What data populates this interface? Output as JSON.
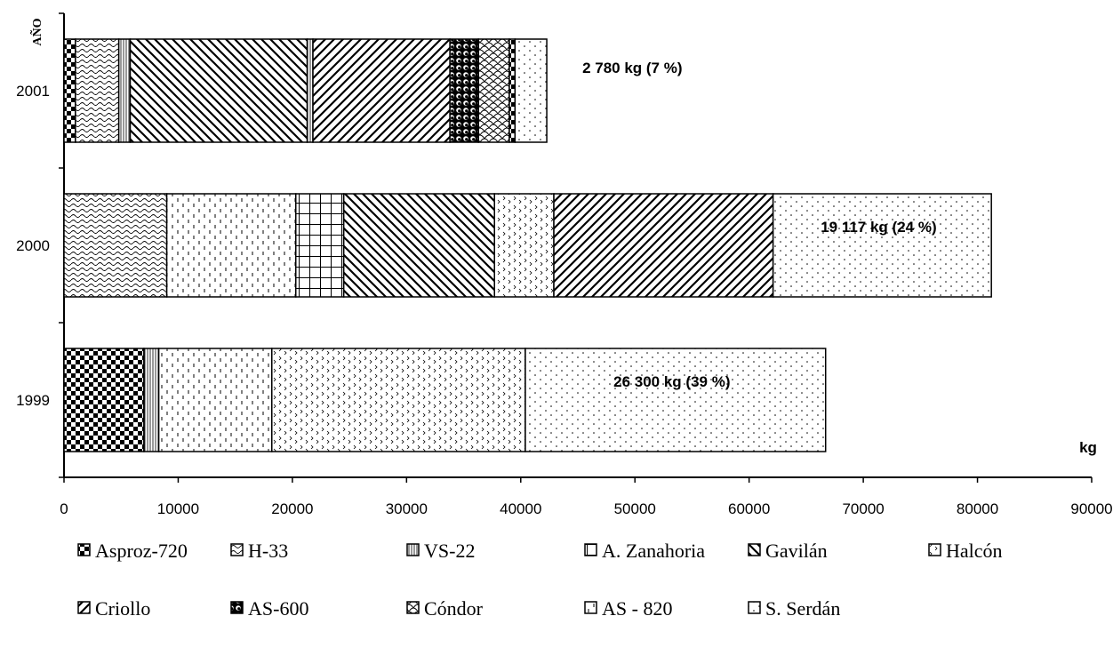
{
  "chart_data": {
    "type": "bar",
    "orientation": "horizontal",
    "stacked": true,
    "ylabel": "AÑO",
    "xlabel": "kg",
    "xlim": [
      0,
      90000
    ],
    "xticks": [
      0,
      10000,
      20000,
      30000,
      40000,
      50000,
      60000,
      70000,
      80000,
      90000
    ],
    "categories": [
      "2001",
      "2000",
      "1999"
    ],
    "bars": [
      {
        "year": "2001",
        "annotation": "2 780 kg (7 %)",
        "segments": [
          {
            "pattern": "checker",
            "value": 1000
          },
          {
            "pattern": "wave",
            "value": 3800
          },
          {
            "pattern": "vlines",
            "value": 1000
          },
          {
            "pattern": "diag-back",
            "value": 15500
          },
          {
            "pattern": "vlines",
            "value": 500
          },
          {
            "pattern": "diag-fwd",
            "value": 12000
          },
          {
            "pattern": "circles",
            "value": 2500
          },
          {
            "pattern": "scales",
            "value": 2700
          },
          {
            "pattern": "checker",
            "value": 500
          },
          {
            "pattern": "dots",
            "value": 2780
          }
        ]
      },
      {
        "year": "2000",
        "annotation": "19 117 kg  (24 %)",
        "segments": [
          {
            "pattern": "wave",
            "value": 9000
          },
          {
            "pattern": "vdash",
            "value": 11300
          },
          {
            "pattern": "grid",
            "value": 4200
          },
          {
            "pattern": "diag-back",
            "value": 13200
          },
          {
            "pattern": "chevrons",
            "value": 5200
          },
          {
            "pattern": "diag-fwd",
            "value": 19200
          },
          {
            "pattern": "dots",
            "value": 19117
          }
        ]
      },
      {
        "year": "1999",
        "annotation": "26 300 kg  (39 %)",
        "segments": [
          {
            "pattern": "checker",
            "value": 7000
          },
          {
            "pattern": "vlines",
            "value": 1300
          },
          {
            "pattern": "vdash",
            "value": 9900
          },
          {
            "pattern": "chevrons",
            "value": 22200
          },
          {
            "pattern": "dots",
            "value": 26300
          }
        ]
      }
    ],
    "legend": {
      "placement": "bottom",
      "entries": [
        {
          "label": "Asproz-720",
          "icon": "checker"
        },
        {
          "label": "H-33",
          "icon": "wave"
        },
        {
          "label": "VS-22",
          "icon": "vlines"
        },
        {
          "label": "A. Zanahoria",
          "icon": "grid"
        },
        {
          "label": "Gavilán",
          "icon": "diag-back"
        },
        {
          "label": "Halcón",
          "icon": "chevrons"
        },
        {
          "label": "Criollo",
          "icon": "diag-fwd"
        },
        {
          "label": "AS-600",
          "icon": "circles"
        },
        {
          "label": "Cóndor",
          "icon": "scales"
        },
        {
          "label": "AS - 820",
          "icon": "vdash"
        },
        {
          "label": "S. Serdán",
          "icon": "dots"
        }
      ]
    },
    "grid": false
  }
}
